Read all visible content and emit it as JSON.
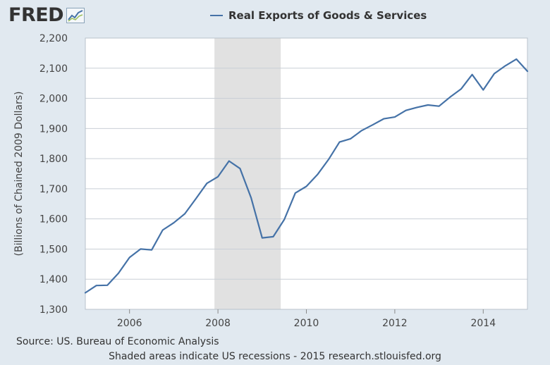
{
  "logo": {
    "text": "FRED",
    "icon": "trend-chart-icon"
  },
  "legend": {
    "label": "Real Exports of Goods & Services"
  },
  "footer": {
    "source": "Source: US. Bureau of Economic Analysis",
    "note": "Shaded areas indicate US recessions - 2015 research.stlouisfed.org"
  },
  "colors": {
    "line": "#4572a7",
    "recession": "#e1e1e1",
    "grid": "#c9cfd6",
    "plot_bg": "#ffffff",
    "page_bg": "#e1e9f0"
  },
  "chart_data": {
    "type": "line",
    "title": "Real Exports of Goods & Services",
    "xlabel": "",
    "ylabel": "(Billions of Chained 2009 Dollars)",
    "xlim": [
      2005.0,
      2015.0
    ],
    "ylim": [
      1300,
      2200
    ],
    "yticks": [
      1300,
      1400,
      1500,
      1600,
      1700,
      1800,
      1900,
      2000,
      2100,
      2200
    ],
    "ytick_labels": [
      "1,300",
      "1,400",
      "1,500",
      "1,600",
      "1,700",
      "1,800",
      "1,900",
      "2,000",
      "2,100",
      "2,200"
    ],
    "xticks": [
      2006,
      2008,
      2010,
      2012,
      2014
    ],
    "xtick_labels": [
      "2006",
      "2008",
      "2010",
      "2012",
      "2014"
    ],
    "recessions": [
      [
        2007.92,
        2009.42
      ]
    ],
    "grid": true,
    "legend_position": "top-center",
    "series": [
      {
        "name": "Real Exports of Goods & Services",
        "x": [
          2005.0,
          2005.25,
          2005.5,
          2005.75,
          2006.0,
          2006.25,
          2006.5,
          2006.75,
          2007.0,
          2007.25,
          2007.5,
          2007.75,
          2008.0,
          2008.25,
          2008.5,
          2008.75,
          2009.0,
          2009.25,
          2009.5,
          2009.75,
          2010.0,
          2010.25,
          2010.5,
          2010.75,
          2011.0,
          2011.25,
          2011.5,
          2011.75,
          2012.0,
          2012.25,
          2012.5,
          2012.75,
          2013.0,
          2013.25,
          2013.5,
          2013.75,
          2014.0,
          2014.25,
          2014.5,
          2014.75,
          2015.0
        ],
        "values": [
          1355,
          1379,
          1380,
          1420,
          1472,
          1500,
          1497,
          1563,
          1587,
          1617,
          1667,
          1718,
          1740,
          1792,
          1767,
          1670,
          1537,
          1541,
          1598,
          1686,
          1708,
          1747,
          1797,
          1855,
          1866,
          1893,
          1912,
          1932,
          1938,
          1960,
          1970,
          1978,
          1974,
          2004,
          2031,
          2079,
          2028,
          2082,
          2108,
          2130,
          2090
        ]
      }
    ]
  }
}
